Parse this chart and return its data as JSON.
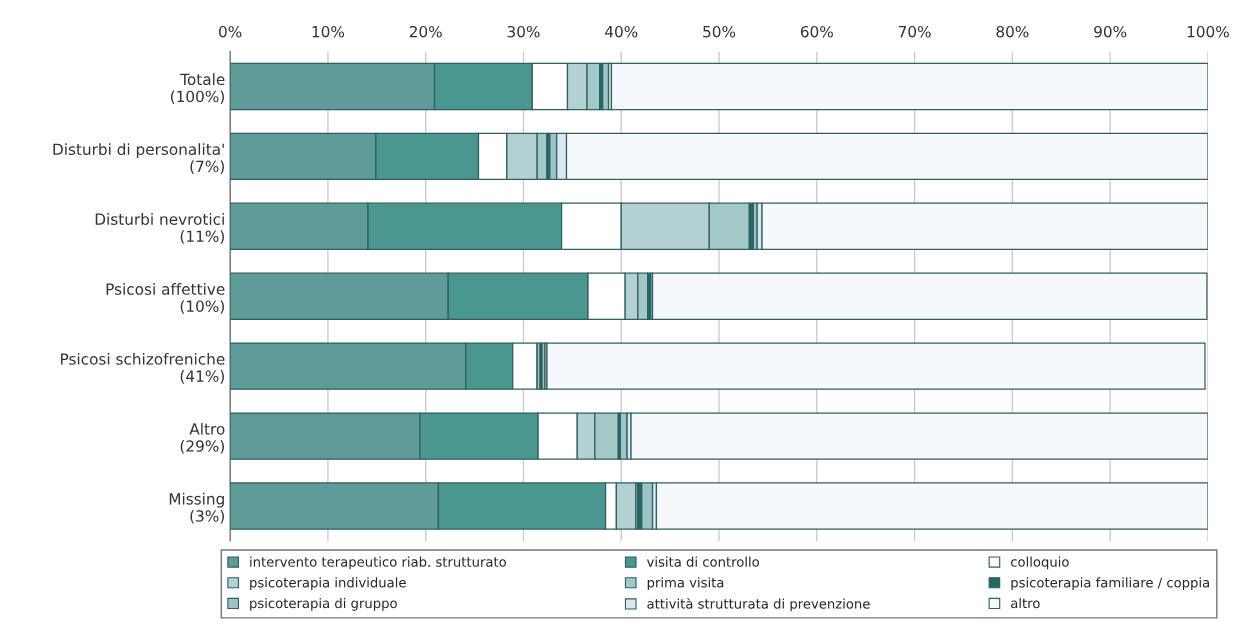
{
  "chart_data": {
    "type": "bar",
    "orientation": "horizontal",
    "stacked": true,
    "categories": [
      "Totale\n(100%)",
      "Disturbi di personalita'\n(7%)",
      "Disturbi nevrotici\n(11%)",
      "Psicosi affettive\n(10%)",
      "Psicosi schizofreniche\n(41%)",
      "Altro\n(29%)",
      "Missing\n(3%)"
    ],
    "series": [
      {
        "name": "intervento terapeutico riab. strutturato",
        "color": "#5f9b98",
        "values": [
          20.9,
          14.9,
          14.1,
          22.3,
          24.1,
          19.4,
          21.3
        ]
      },
      {
        "name": "visita di controllo",
        "color": "#4a9690",
        "values": [
          10.0,
          10.5,
          19.8,
          14.3,
          4.8,
          12.1,
          17.1
        ]
      },
      {
        "name": "colloquio",
        "color": "#ffffff",
        "values": [
          3.6,
          2.9,
          6.1,
          3.8,
          2.5,
          4.0,
          1.1
        ]
      },
      {
        "name": "psicoterapia individuale",
        "color": "#b3d1d3",
        "values": [
          2.0,
          3.1,
          9.0,
          1.3,
          null,
          1.8,
          2.0
        ]
      },
      {
        "name": "prima visita",
        "color": "#a3c8c8",
        "values": [
          1.3,
          1.0,
          4.1,
          1.0,
          0.3,
          2.4,
          0.2
        ]
      },
      {
        "name": "psicoterapia familiare / coppia",
        "color": "#1e6b66",
        "values": [
          0.3,
          0.3,
          0.4,
          0.3,
          0.2,
          0.2,
          0.4
        ]
      },
      {
        "name": "psicoterapia di gruppo",
        "color": "#9cc4c4",
        "values": [
          0.6,
          0.7,
          0.4,
          0.2,
          0.3,
          0.7,
          1.1
        ]
      },
      {
        "name": "attività strutturata di prevenzione",
        "color": "#dbe9ee",
        "values": [
          0.3,
          1.0,
          0.5,
          null,
          0.2,
          0.4,
          0.4
        ]
      },
      {
        "name": "altro",
        "color": "#f5f9fc",
        "values": [
          61.0,
          65.6,
          45.6,
          56.7,
          67.3,
          59.0,
          56.4
        ]
      }
    ],
    "xlim": [
      0,
      100
    ],
    "xticks": [
      {
        "value": 0,
        "label": "0%"
      },
      {
        "value": 10,
        "label": "10%"
      },
      {
        "value": 20,
        "label": "20%"
      },
      {
        "value": 30,
        "label": "30%"
      },
      {
        "value": 40,
        "label": "40%"
      },
      {
        "value": 50,
        "label": "50%"
      },
      {
        "value": 60,
        "label": "60%"
      },
      {
        "value": 70,
        "label": "70%"
      },
      {
        "value": 80,
        "label": "80%"
      },
      {
        "value": 90,
        "label": "90%"
      },
      {
        "value": 100,
        "label": "100%"
      }
    ],
    "grid": "x",
    "legend": "bottom"
  }
}
